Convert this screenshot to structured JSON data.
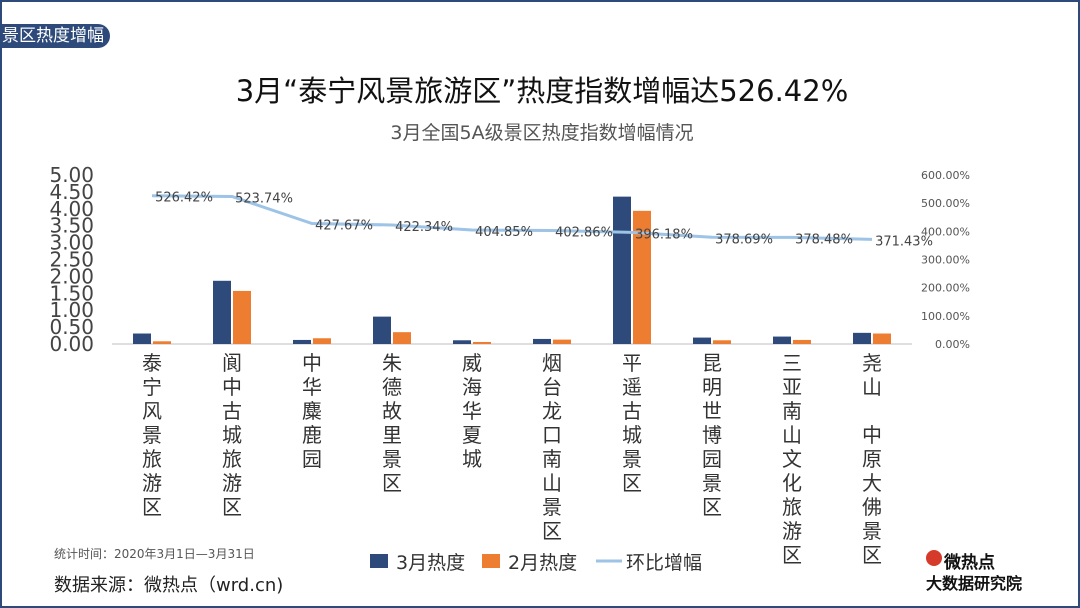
{
  "header_tag": "景区热度增幅",
  "title": "3月“泰宁风景旅游区”热度指数增幅达526.42%",
  "subtitle": "3月全国5A级景区热度指数增幅情况",
  "footer": {
    "stat_time": "统计时间：2020年3月1日—3月31日",
    "source": "数据来源：微热点（wrd.cn)",
    "logo_line1": "微热点",
    "logo_line2": "大数据研究院"
  },
  "colors": {
    "march": "#2e4a7a",
    "feb": "#ed7d31",
    "growth": "#9dc3e6"
  },
  "chart_data": {
    "type": "bar",
    "categories": [
      "泰宁风景旅游区",
      "阆中古城旅游区",
      "中华麋鹿园",
      "朱德故里景区",
      "威海华夏城",
      "烟台龙口南山景区",
      "平遥古城景区",
      "昆明世博园景区",
      "三亚南山文化旅游区",
      "尧山 中原大佛景区"
    ],
    "series": [
      {
        "name": "3月热度",
        "axis": "left",
        "type": "bar",
        "values": [
          0.31,
          1.87,
          0.12,
          0.81,
          0.11,
          0.15,
          4.36,
          0.19,
          0.22,
          0.33
        ]
      },
      {
        "name": "2月热度",
        "axis": "left",
        "type": "bar",
        "values": [
          0.08,
          1.57,
          0.17,
          0.35,
          0.06,
          0.13,
          3.94,
          0.11,
          0.12,
          0.31
        ]
      },
      {
        "name": "环比增幅",
        "axis": "right",
        "type": "line",
        "values": [
          526.42,
          523.74,
          427.67,
          422.34,
          404.85,
          402.86,
          396.18,
          378.69,
          378.48,
          371.43
        ]
      }
    ],
    "growth_labels": [
      "526.42%",
      "523.74%",
      "427.67%",
      "422.34%",
      "404.85%",
      "402.86%",
      "396.18%",
      "378.69%",
      "378.48%",
      "371.43%"
    ],
    "y_left": {
      "min": 0,
      "max": 5,
      "ticks": [
        "0.00",
        "0.50",
        "1.00",
        "1.50",
        "2.00",
        "2.50",
        "3.00",
        "3.50",
        "4.00",
        "4.50",
        "5.00"
      ]
    },
    "y_right": {
      "min": 0,
      "max": 600,
      "ticks": [
        "0.00%",
        "100.00%",
        "200.00%",
        "300.00%",
        "400.00%",
        "500.00%",
        "600.00%"
      ]
    },
    "legend": [
      "3月热度",
      "2月热度",
      "环比增幅"
    ]
  }
}
